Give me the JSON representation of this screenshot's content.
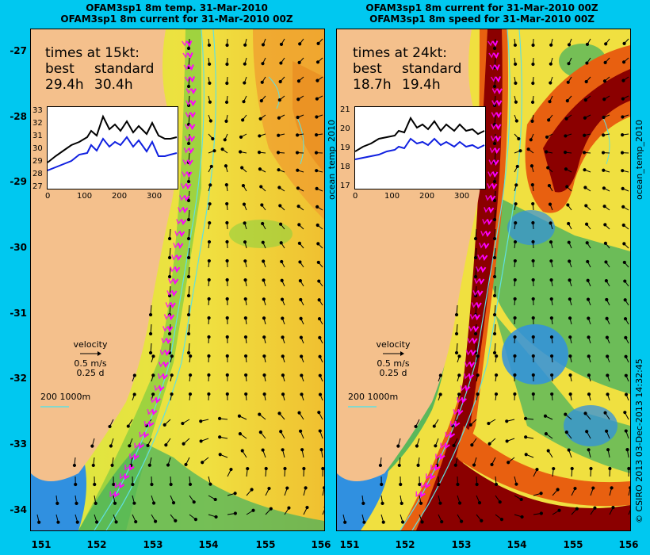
{
  "left_panel": {
    "title_line1": "OFAM3sp1 8m temp. 31-Mar-2010",
    "title_line2": "OFAM3sp1 8m current for 31-Mar-2010 00Z",
    "times_heading": "times at 15kt:",
    "best_label": "best",
    "standard_label": "standard",
    "best_value": "29.4h",
    "standard_value": "30.4h",
    "inset_y_ticks": [
      "33",
      "32",
      "31",
      "30",
      "29",
      "28",
      "27"
    ],
    "inset_x_ticks": [
      "0",
      "100",
      "200",
      "300"
    ]
  },
  "right_panel": {
    "title_line1": "OFAM3sp1 8m current for 31-Mar-2010 00Z",
    "title_line2": "OFAM3sp1 8m speed for 31-Mar-2010 00Z",
    "times_heading": "times at 24kt:",
    "best_label": "best",
    "standard_label": "standard",
    "best_value": "18.7h",
    "standard_value": "19.4h",
    "inset_y_ticks": [
      "21",
      "20",
      "19",
      "18",
      "17"
    ],
    "inset_x_ticks": [
      "0",
      "100",
      "200",
      "300"
    ],
    "side_label": "ocean_temp_2010"
  },
  "velocity_legend": {
    "label": "velocity",
    "speed": "0.5 m/s",
    "time": "0.25 d"
  },
  "depth_legend": {
    "text": "200  1000m"
  },
  "y_axis_ticks": [
    "-27",
    "-28",
    "-29",
    "-30",
    "-31",
    "-32",
    "-33",
    "-34"
  ],
  "x_axis_ticks": [
    "151",
    "152",
    "153",
    "154",
    "155",
    "156"
  ],
  "left_side_label": "ocean_temp_2010",
  "credit": "© CSIRO 2013   03-Dec-2013 14:32:45",
  "colors": {
    "background": "#00c8f0",
    "land": "#f4c08c",
    "best_route": "#ff00ff",
    "isobath": "#60e0e0"
  }
}
